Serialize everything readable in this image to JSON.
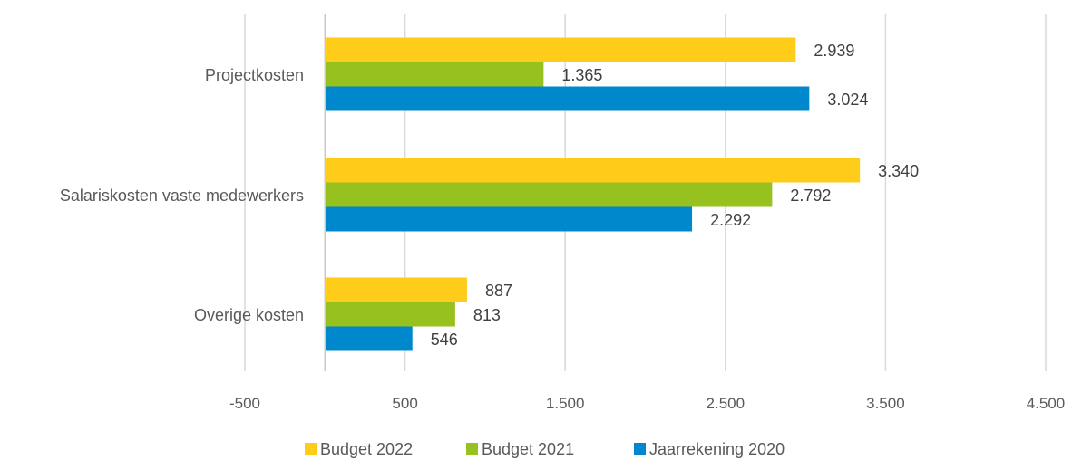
{
  "chart_data": {
    "type": "bar",
    "orientation": "horizontal",
    "categories": [
      "Projectkosten",
      "Salariskosten vaste medewerkers",
      "Overige kosten"
    ],
    "series": [
      {
        "name": "Budget 2022",
        "color": "#FFCC1A",
        "values": [
          2939,
          3340,
          887
        ],
        "labels": [
          "2.939",
          "3.340",
          "887"
        ]
      },
      {
        "name": "Budget 2021",
        "color": "#97C11F",
        "values": [
          1365,
          2792,
          813
        ],
        "labels": [
          "1.365",
          "2.792",
          "813"
        ]
      },
      {
        "name": "Jaarrekening 2020",
        "color": "#0088CC",
        "values": [
          3024,
          2292,
          546
        ],
        "labels": [
          "3.024",
          "2.292",
          "546"
        ]
      }
    ],
    "xlim": [
      -500,
      4500
    ],
    "xticks": [
      -500,
      500,
      1500,
      2500,
      3500,
      4500
    ],
    "xtick_labels": [
      "-500",
      "500",
      "1.500",
      "2.500",
      "3.500",
      "4.500"
    ],
    "grid": true,
    "legend_position": "bottom"
  }
}
